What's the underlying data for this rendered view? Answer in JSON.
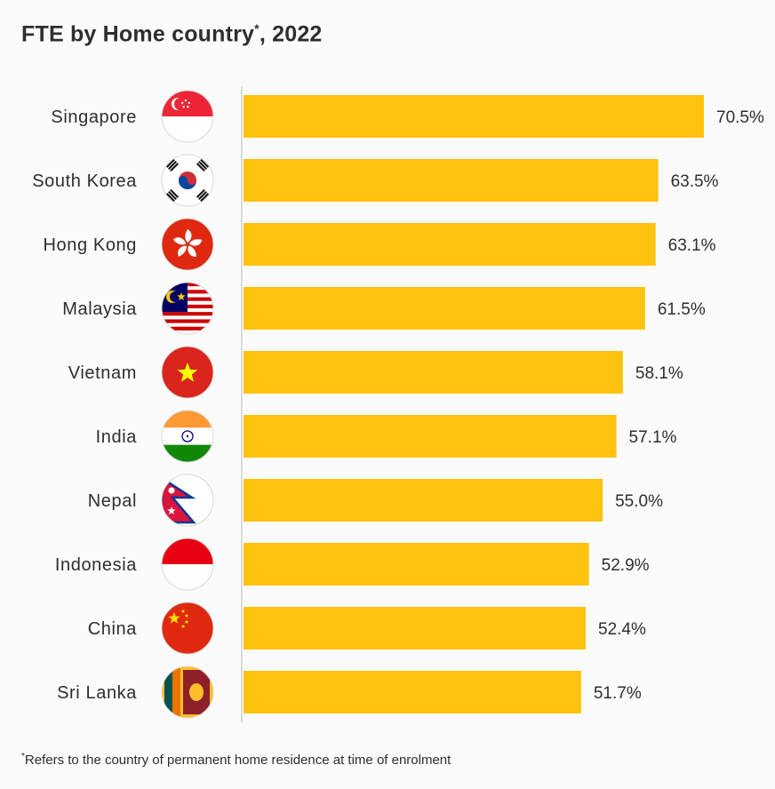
{
  "title": {
    "text": "FTE by Home country",
    "mark": "*",
    "suffix": ", 2022"
  },
  "footnote": {
    "mark": "*",
    "text": "Refers to the country of permanent home residence at time of enrolment"
  },
  "colors": {
    "bar": "#ffc20e",
    "axis": "#cfcfcf",
    "text": "#2e2e2e"
  },
  "chart_data": {
    "type": "bar",
    "orientation": "horizontal",
    "categories": [
      "Singapore",
      "South Korea",
      "Hong Kong",
      "Malaysia",
      "Vietnam",
      "India",
      "Nepal",
      "Indonesia",
      "China",
      "Sri Lanka"
    ],
    "values": [
      70.5,
      63.5,
      63.1,
      61.5,
      58.1,
      57.1,
      55.0,
      52.9,
      52.4,
      51.7
    ],
    "value_labels": [
      "70.5%",
      "63.5%",
      "63.1%",
      "61.5%",
      "58.1%",
      "57.1%",
      "55.0%",
      "52.9%",
      "52.4%",
      "51.7%"
    ],
    "icons": [
      "singapore-flag-icon",
      "south-korea-flag-icon",
      "hong-kong-flag-icon",
      "malaysia-flag-icon",
      "vietnam-flag-icon",
      "india-flag-icon",
      "nepal-flag-icon",
      "indonesia-flag-icon",
      "china-flag-icon",
      "sri-lanka-flag-icon"
    ],
    "xlim": [
      0,
      70.5
    ],
    "grid": false,
    "legend": "none"
  }
}
